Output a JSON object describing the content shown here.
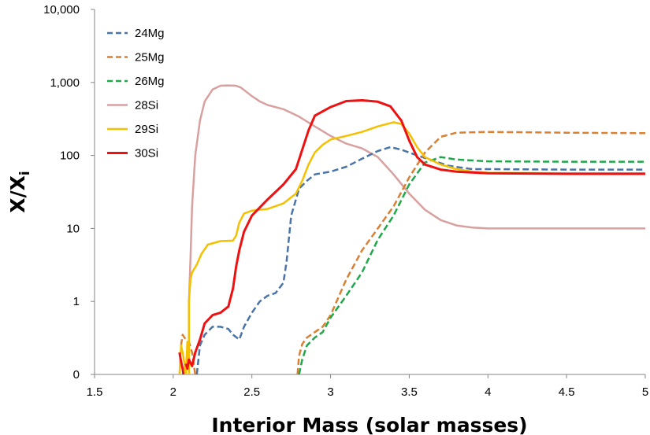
{
  "chart_data": {
    "type": "line",
    "xlabel": "Interior Mass (solar masses)",
    "ylabel": {
      "main": "X/X",
      "sub": "i"
    },
    "xlim": [
      1.5,
      5
    ],
    "x_ticks": [
      "1.5",
      "2",
      "2.5",
      "3",
      "3.5",
      "4",
      "4.5",
      "5"
    ],
    "y_scale": "log",
    "y_ticks": [
      "0",
      "1",
      "10",
      "100",
      "1,000",
      "10,000"
    ],
    "legend_position": "top-left",
    "series": [
      {
        "name": "24Mg",
        "color": "#4a74a8",
        "dash": "dashed",
        "points": [
          [
            2.15,
            0.1
          ],
          [
            2.17,
            0.25
          ],
          [
            2.2,
            0.35
          ],
          [
            2.25,
            0.45
          ],
          [
            2.3,
            0.45
          ],
          [
            2.35,
            0.42
          ],
          [
            2.38,
            0.35
          ],
          [
            2.42,
            0.3
          ],
          [
            2.45,
            0.45
          ],
          [
            2.5,
            0.7
          ],
          [
            2.55,
            1.0
          ],
          [
            2.6,
            1.2
          ],
          [
            2.65,
            1.3
          ],
          [
            2.7,
            1.8
          ],
          [
            2.72,
            3.5
          ],
          [
            2.75,
            15
          ],
          [
            2.8,
            35
          ],
          [
            2.85,
            45
          ],
          [
            2.9,
            55
          ],
          [
            3.0,
            60
          ],
          [
            3.1,
            70
          ],
          [
            3.2,
            90
          ],
          [
            3.3,
            115
          ],
          [
            3.38,
            130
          ],
          [
            3.45,
            120
          ],
          [
            3.55,
            100
          ],
          [
            3.65,
            85
          ],
          [
            3.75,
            72
          ],
          [
            3.9,
            65
          ],
          [
            4.0,
            65
          ],
          [
            4.5,
            64
          ],
          [
            5.0,
            64
          ]
        ]
      },
      {
        "name": "25Mg",
        "color": "#d98033",
        "dash": "dashed",
        "points": [
          [
            2.05,
            0.25
          ],
          [
            2.06,
            0.35
          ],
          [
            2.08,
            0.3
          ],
          [
            2.1,
            0.28
          ],
          [
            2.12,
            0.2
          ],
          [
            2.14,
            0.1
          ],
          null,
          [
            2.79,
            0.1
          ],
          [
            2.8,
            0.18
          ],
          [
            2.82,
            0.26
          ],
          [
            2.85,
            0.32
          ],
          [
            2.9,
            0.38
          ],
          [
            2.95,
            0.45
          ],
          [
            3.0,
            0.65
          ],
          [
            3.1,
            2
          ],
          [
            3.2,
            5
          ],
          [
            3.3,
            10
          ],
          [
            3.4,
            20
          ],
          [
            3.5,
            50
          ],
          [
            3.6,
            110
          ],
          [
            3.7,
            180
          ],
          [
            3.8,
            205
          ],
          [
            4.0,
            210
          ],
          [
            4.5,
            205
          ],
          [
            5.0,
            202
          ]
        ]
      },
      {
        "name": "26Mg",
        "color": "#1fa84a",
        "dash": "dashed",
        "points": [
          [
            2.8,
            0.1
          ],
          [
            2.82,
            0.16
          ],
          [
            2.85,
            0.25
          ],
          [
            2.9,
            0.32
          ],
          [
            2.95,
            0.38
          ],
          [
            3.0,
            0.6
          ],
          [
            3.1,
            1.2
          ],
          [
            3.2,
            2.5
          ],
          [
            3.3,
            7
          ],
          [
            3.4,
            15
          ],
          [
            3.5,
            40
          ],
          [
            3.6,
            80
          ],
          [
            3.7,
            95
          ],
          [
            3.8,
            88
          ],
          [
            4.0,
            83
          ],
          [
            4.5,
            82
          ],
          [
            5.0,
            82
          ]
        ]
      },
      {
        "name": "28Si",
        "color": "#d9a0a0",
        "dash": "solid",
        "points": [
          [
            2.1,
            0.1
          ],
          [
            2.1,
            1
          ],
          [
            2.11,
            4
          ],
          [
            2.12,
            20
          ],
          [
            2.14,
            100
          ],
          [
            2.17,
            300
          ],
          [
            2.2,
            550
          ],
          [
            2.25,
            800
          ],
          [
            2.3,
            900
          ],
          [
            2.35,
            910
          ],
          [
            2.4,
            900
          ],
          [
            2.43,
            850
          ],
          [
            2.5,
            650
          ],
          [
            2.55,
            550
          ],
          [
            2.6,
            490
          ],
          [
            2.7,
            430
          ],
          [
            2.8,
            340
          ],
          [
            2.9,
            250
          ],
          [
            3.0,
            185
          ],
          [
            3.1,
            145
          ],
          [
            3.2,
            125
          ],
          [
            3.3,
            95
          ],
          [
            3.4,
            55
          ],
          [
            3.5,
            30
          ],
          [
            3.6,
            18
          ],
          [
            3.7,
            13
          ],
          [
            3.8,
            11
          ],
          [
            3.9,
            10.3
          ],
          [
            4.0,
            10
          ],
          [
            4.5,
            10
          ],
          [
            5.0,
            10
          ]
        ]
      },
      {
        "name": "29Si",
        "color": "#f5c000",
        "dash": "solid",
        "points": [
          [
            2.04,
            0.1
          ],
          [
            2.05,
            0.25
          ],
          [
            2.06,
            0.2
          ],
          [
            2.07,
            0.15
          ],
          [
            2.08,
            0.1
          ],
          [
            2.09,
            0.28
          ],
          [
            2.1,
            0.1
          ],
          [
            2.1,
            1
          ],
          [
            2.11,
            2
          ],
          [
            2.12,
            2.5
          ],
          [
            2.15,
            3.2
          ],
          [
            2.18,
            4.5
          ],
          [
            2.22,
            6
          ],
          [
            2.3,
            6.7
          ],
          [
            2.38,
            6.8
          ],
          [
            2.4,
            8
          ],
          [
            2.42,
            12
          ],
          [
            2.45,
            16
          ],
          [
            2.5,
            17.5
          ],
          [
            2.6,
            18.5
          ],
          [
            2.7,
            22
          ],
          [
            2.78,
            30
          ],
          [
            2.82,
            45
          ],
          [
            2.86,
            75
          ],
          [
            2.9,
            110
          ],
          [
            2.95,
            140
          ],
          [
            3.0,
            165
          ],
          [
            3.1,
            185
          ],
          [
            3.2,
            210
          ],
          [
            3.3,
            250
          ],
          [
            3.4,
            285
          ],
          [
            3.45,
            270
          ],
          [
            3.5,
            200
          ],
          [
            3.55,
            130
          ],
          [
            3.6,
            95
          ],
          [
            3.7,
            75
          ],
          [
            3.8,
            65
          ],
          [
            3.9,
            60
          ],
          [
            4.0,
            58
          ],
          [
            4.5,
            57
          ],
          [
            5.0,
            57
          ]
        ]
      },
      {
        "name": "30Si",
        "color": "#ee1111",
        "dash": "solid",
        "points": [
          [
            2.04,
            0.2
          ],
          [
            2.05,
            0.15
          ],
          [
            2.06,
            0.12
          ],
          [
            2.065,
            0.1
          ],
          null,
          [
            2.08,
            0.14
          ],
          [
            2.09,
            0.12
          ],
          [
            2.1,
            0.16
          ],
          [
            2.12,
            0.13
          ],
          [
            2.14,
            0.2
          ],
          [
            2.17,
            0.3
          ],
          [
            2.2,
            0.5
          ],
          [
            2.25,
            0.65
          ],
          [
            2.3,
            0.7
          ],
          [
            2.35,
            0.85
          ],
          [
            2.38,
            1.5
          ],
          [
            2.4,
            3
          ],
          [
            2.42,
            5
          ],
          [
            2.45,
            9
          ],
          [
            2.5,
            15
          ],
          [
            2.6,
            25
          ],
          [
            2.7,
            40
          ],
          [
            2.78,
            65
          ],
          [
            2.82,
            120
          ],
          [
            2.86,
            220
          ],
          [
            2.9,
            350
          ],
          [
            3.0,
            460
          ],
          [
            3.1,
            555
          ],
          [
            3.2,
            570
          ],
          [
            3.3,
            545
          ],
          [
            3.38,
            470
          ],
          [
            3.45,
            300
          ],
          [
            3.5,
            160
          ],
          [
            3.55,
            95
          ],
          [
            3.6,
            75
          ],
          [
            3.7,
            64
          ],
          [
            3.8,
            60
          ],
          [
            4.0,
            57
          ],
          [
            4.5,
            56
          ],
          [
            5.0,
            56
          ]
        ]
      }
    ]
  }
}
